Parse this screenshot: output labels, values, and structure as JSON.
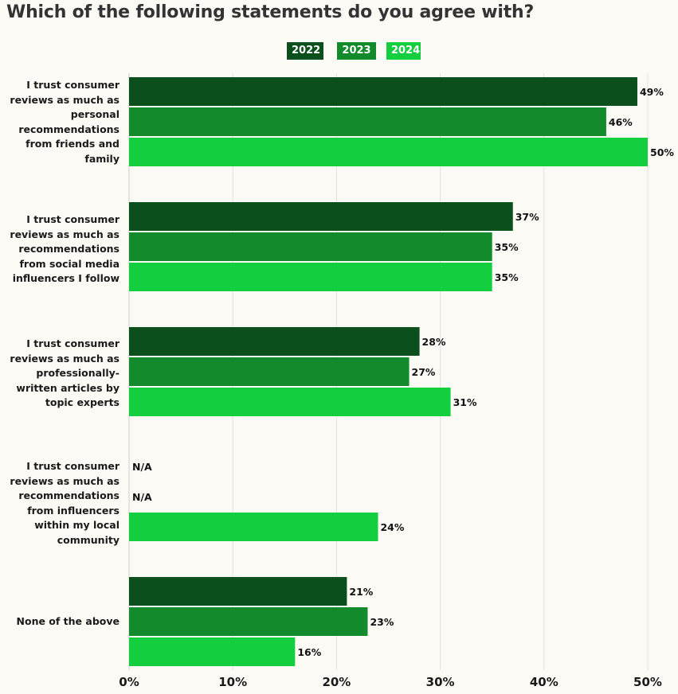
{
  "title": "Which of the following statements do you agree with?",
  "legend": [
    {
      "label": "2022",
      "color": "#0b4f1c"
    },
    {
      "label": "2023",
      "color": "#138a2c"
    },
    {
      "label": "2024",
      "color": "#13cf3f"
    }
  ],
  "chart_data": {
    "type": "bar",
    "orientation": "horizontal",
    "title": "Which of the following statements do you agree with?",
    "categories": [
      "I trust consumer reviews as much as personal recommendations from friends and family",
      "I trust consumer reviews as much as recommendations from social media influencers I follow",
      "I trust consumer reviews as much as professionally-written articles by topic experts",
      "I trust consumer reviews as much as recommendations from influencers within my local community",
      "None of the above"
    ],
    "series": [
      {
        "name": "2022",
        "color": "#0b4f1c",
        "values": [
          49,
          37,
          28,
          null,
          21
        ],
        "labels": [
          "49%",
          "37%",
          "28%",
          "N/A",
          "21%"
        ]
      },
      {
        "name": "2023",
        "color": "#138a2c",
        "values": [
          46,
          35,
          27,
          null,
          23
        ],
        "labels": [
          "46%",
          "35%",
          "27%",
          "N/A",
          "23%"
        ]
      },
      {
        "name": "2024",
        "color": "#13cf3f",
        "values": [
          50,
          35,
          31,
          24,
          16
        ],
        "labels": [
          "50%",
          "35%",
          "31%",
          "24%",
          "16%"
        ]
      }
    ],
    "xlim": [
      0,
      50
    ],
    "xticks": [
      0,
      10,
      20,
      30,
      40,
      50
    ],
    "xtick_labels": [
      "0%",
      "10%",
      "20%",
      "30%",
      "40%",
      "50%"
    ],
    "grid": true,
    "legend_position": "top-center"
  }
}
